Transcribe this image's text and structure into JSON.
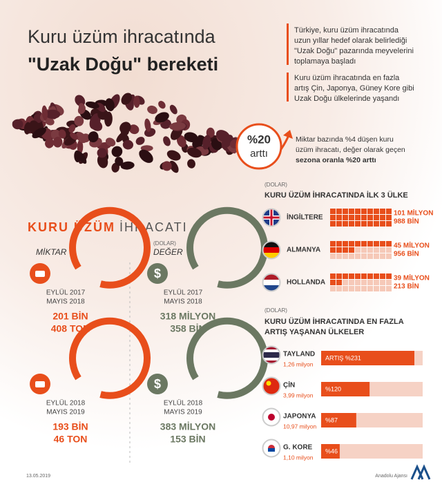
{
  "header": {
    "title_line1": "Kuru üzüm ihracatında",
    "title_line2": "\"Uzak Doğu\" bereketi"
  },
  "notes": [
    [
      "Türkiye, kuru üzüm ihracatında",
      "uzun yıllar hedef olarak belirlediği",
      "\"Uzak Doğu\" pazarında meyvelerini",
      "toplamaya başladı"
    ],
    [
      "Kuru üzüm ihracatında en fazla",
      "artış Çin, Japonya, Güney Kore gibi",
      "Uzak Doğu ülkelerinde yaşandı"
    ]
  ],
  "badge": {
    "value": "%20",
    "label": "arttı"
  },
  "badge_note": [
    "Miktar bazında %4 düşen kuru",
    "üzüm ihracatı, değer olarak geçen",
    "sezona oranla %20 arttı"
  ],
  "exports": {
    "title_bold": "KURU ÜZÜM",
    "title_rest": "İHRACATI",
    "quantity_label": "MİKTAR",
    "value_unit": "(DOLAR)",
    "value_label": "DEĞER",
    "periods": [
      {
        "period": [
          "EYLÜL 2017",
          "MAYIS 2018"
        ],
        "quantity": [
          "201 BİN",
          "408 TON"
        ],
        "value": [
          "318 MİLYON",
          "358 BİN"
        ]
      },
      {
        "period": [
          "EYLÜL 2018",
          "MAYIS 2019"
        ],
        "quantity": [
          "193 BİN",
          "46 TON"
        ],
        "value": [
          "383 MİLYON",
          "153 BİN"
        ]
      }
    ]
  },
  "top3": {
    "unit": "(DOLAR)",
    "title": "KURU ÜZÜM İHRACATINDA İLK 3 ÜLKE",
    "rows": [
      {
        "country": "İNGİLTERE",
        "amount": [
          "101 MİLYON",
          "988 BİN"
        ],
        "value": 101988000
      },
      {
        "country": "ALMANYA",
        "amount": [
          "45 MİLYON",
          "956 BİN"
        ],
        "value": 45956000
      },
      {
        "country": "HOLLANDA",
        "amount": [
          "39 MİLYON",
          "213 BİN"
        ],
        "value": 39213000
      }
    ]
  },
  "growth": {
    "unit": "(DOLAR)",
    "title": [
      "KURU ÜZÜM İHRACATINDA EN FAZLA",
      "ARTIŞ YAŞANAN ÜLKELER"
    ],
    "rows": [
      {
        "country": "TAYLAND",
        "total": "1,26 milyon",
        "label": "ARTIŞ %231",
        "value": 231
      },
      {
        "country": "ÇİN",
        "total": "3,99 milyon",
        "label": "%120",
        "value": 120
      },
      {
        "country": "JAPONYA",
        "total": "10,97 milyon",
        "label": "%87",
        "value": 87
      },
      {
        "country": "G. KORE",
        "total": "1,10 milyon",
        "label": "%46",
        "value": 46
      }
    ]
  },
  "footer": {
    "date": "13.05.2019",
    "source": "Anadolu Ajansı"
  }
}
